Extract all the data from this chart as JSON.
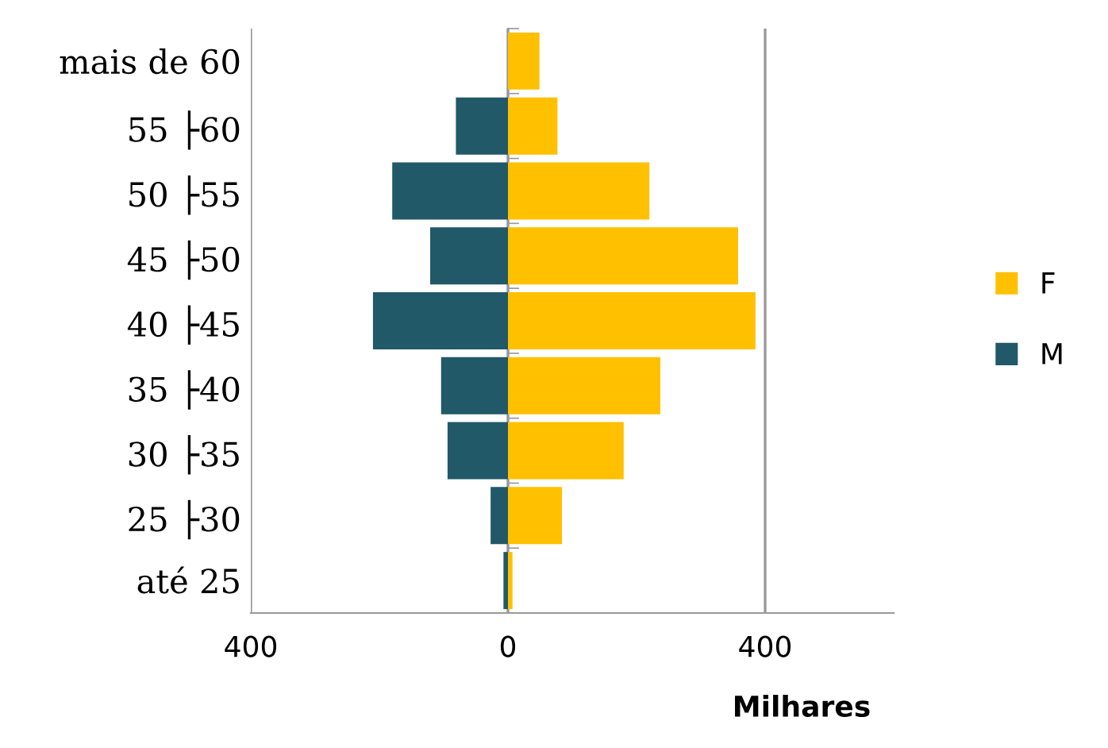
{
  "chart_data": {
    "type": "bar",
    "stacked": true,
    "orientation": "horizontal",
    "xlabel": "Milhares",
    "categories": [
      "mais de 60",
      "55 ├60",
      "50 ├55",
      "45 ├50",
      "40 ├45",
      "35 ├40",
      "30 ├35",
      "25 ├30",
      "até 25"
    ],
    "series": [
      {
        "name": "F",
        "color": "#ffc000",
        "values": [
          49,
          77,
          220,
          358,
          385,
          237,
          180,
          84,
          7
        ]
      },
      {
        "name": "M",
        "color": "#215968",
        "values": [
          0,
          -81,
          -180,
          -121,
          -210,
          -104,
          -94,
          -27,
          -7
        ]
      }
    ],
    "xlim": [
      -400,
      600
    ],
    "xticks": [
      {
        "value": -400,
        "label": "400"
      },
      0,
      400
    ],
    "grid": "x",
    "legend": "right"
  }
}
